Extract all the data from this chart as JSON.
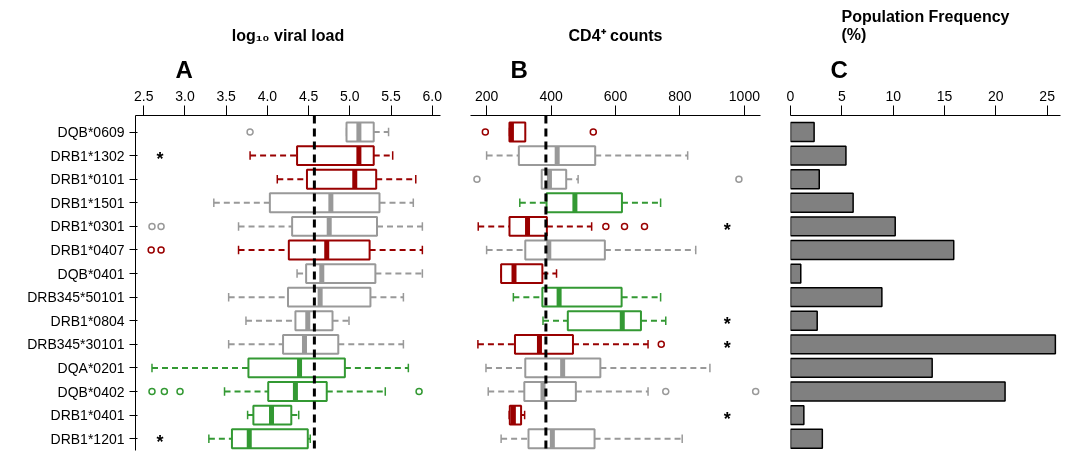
{
  "chart_data": [
    {
      "type": "box",
      "orientation": "horizontal",
      "title": "log₁₀ viral load",
      "subtitle": "A",
      "categories": [
        "DQB*0609",
        "DRB1*1302",
        "DRB1*0101",
        "DRB1*1501",
        "DRB1*0301",
        "DRB1*0407",
        "DQB*0401",
        "DRB345*50101",
        "DRB1*0804",
        "DRB345*30101",
        "DQA*0201",
        "DQB*0402",
        "DRB1*0401",
        "DRB1*1201"
      ],
      "colors": [
        "#999999",
        "#990000",
        "#990000",
        "#999999",
        "#999999",
        "#990000",
        "#999999",
        "#999999",
        "#999999",
        "#999999",
        "#339933",
        "#339933",
        "#339933",
        "#339933"
      ],
      "boxes": [
        {
          "low": 4.96,
          "q1": 4.96,
          "median": 5.11,
          "q3": 5.29,
          "high": 5.47,
          "outliers": [
            3.79
          ]
        },
        {
          "low": 3.79,
          "q1": 4.36,
          "median": 5.11,
          "q3": 5.29,
          "high": 5.52
        },
        {
          "low": 4.12,
          "q1": 4.48,
          "median": 5.06,
          "q3": 5.32,
          "high": 5.8
        },
        {
          "low": 3.35,
          "q1": 4.03,
          "median": 4.77,
          "q3": 5.36,
          "high": 5.77
        },
        {
          "low": 3.65,
          "q1": 4.3,
          "median": 4.75,
          "q3": 5.33,
          "high": 5.88,
          "outliers": [
            2.6,
            2.71
          ]
        },
        {
          "low": 3.65,
          "q1": 4.26,
          "median": 4.72,
          "q3": 5.24,
          "high": 5.88,
          "outliers": [
            2.59,
            2.71
          ]
        },
        {
          "low": 4.36,
          "q1": 4.47,
          "median": 4.66,
          "q3": 5.31,
          "high": 5.88
        },
        {
          "low": 3.53,
          "q1": 4.25,
          "median": 4.64,
          "q3": 5.25,
          "high": 5.65
        },
        {
          "low": 3.74,
          "q1": 4.34,
          "median": 4.49,
          "q3": 4.79,
          "high": 4.99
        },
        {
          "low": 3.53,
          "q1": 4.19,
          "median": 4.45,
          "q3": 4.86,
          "high": 5.65
        },
        {
          "low": 2.6,
          "q1": 3.77,
          "median": 4.39,
          "q3": 4.94,
          "high": 5.71
        },
        {
          "low": 3.48,
          "q1": 4.01,
          "median": 4.34,
          "q3": 4.72,
          "high": 5.43,
          "outliers": [
            2.6,
            2.75,
            2.94,
            5.84
          ]
        },
        {
          "low": 3.76,
          "q1": 3.83,
          "median": 4.05,
          "q3": 4.29,
          "high": 4.38
        },
        {
          "low": 3.29,
          "q1": 3.57,
          "median": 3.78,
          "q3": 4.49,
          "high": 4.52
        }
      ],
      "xlim": [
        2.4,
        6.1
      ],
      "xticks": [
        2.5,
        {
          "value": 3.0,
          "label": "3.0"
        },
        3.5,
        {
          "value": 4.0,
          "label": "4.0"
        },
        4.5,
        {
          "value": 5.0,
          "label": "5.0"
        },
        5.5,
        {
          "value": 6.0,
          "label": "6.0"
        }
      ],
      "ref_lines": [
        {
          "axis": "x",
          "value": 4.57,
          "color": "#000000",
          "line_style": "dashed"
        }
      ],
      "annotations": [
        "*",
        "*"
      ],
      "grid": false
    },
    {
      "type": "box",
      "orientation": "horizontal",
      "title": "CD4⁺ counts",
      "subtitle": "B",
      "categories": [
        null,
        null,
        null,
        null,
        null,
        null,
        null,
        null,
        null,
        null,
        null,
        null,
        null,
        null
      ],
      "colors": [
        "#990000",
        "#999999",
        "#999999",
        "#339933",
        "#990000",
        "#999999",
        "#990000",
        "#339933",
        "#339933",
        "#990000",
        "#999999",
        "#999999",
        "#990000",
        "#999999"
      ],
      "boxes": [
        {
          "low": 271,
          "q1": 271,
          "median": 277,
          "q3": 320,
          "high": 320,
          "outliers": [
            196,
            531
          ]
        },
        {
          "low": 200,
          "q1": 300,
          "median": 419,
          "q3": 537,
          "high": 824
        },
        {
          "low": 371,
          "q1": 371,
          "median": 395,
          "q3": 447,
          "high": 484,
          "outliers": [
            170,
            983
          ]
        },
        {
          "low": 303,
          "q1": 386,
          "median": 474,
          "q3": 620,
          "high": 740
        },
        {
          "low": 174,
          "q1": 271,
          "median": 327,
          "q3": 387,
          "high": 526,
          "outliers": [
            570,
            628,
            690
          ]
        },
        {
          "low": 200,
          "q1": 320,
          "median": 393,
          "q3": 567,
          "high": 849
        },
        {
          "low": 245,
          "q1": 245,
          "median": 285,
          "q3": 373,
          "high": 417
        },
        {
          "low": 283,
          "q1": 373,
          "median": 425,
          "q3": 619,
          "high": 740
        },
        {
          "low": 375,
          "q1": 452,
          "median": 621,
          "q3": 679,
          "high": 756
        },
        {
          "low": 173,
          "q1": 288,
          "median": 364,
          "q3": 468,
          "high": 701,
          "outliers": [
            742
          ]
        },
        {
          "low": 198,
          "q1": 320,
          "median": 436,
          "q3": 553,
          "high": 893
        },
        {
          "low": 205,
          "q1": 317,
          "median": 375,
          "q3": 477,
          "high": 701,
          "outliers": [
            756,
            1035
          ]
        },
        {
          "low": 270,
          "q1": 272,
          "median": 283,
          "q3": 307,
          "high": 318
        },
        {
          "low": 245,
          "q1": 330,
          "median": 404,
          "q3": 535,
          "high": 807
        }
      ],
      "xlim": [
        150,
        1050
      ],
      "xticks": [
        200,
        400,
        600,
        800,
        1000
      ],
      "ref_lines": [
        {
          "axis": "x",
          "value": 384,
          "color": "#000000",
          "line_style": "dashed"
        }
      ],
      "annotations": [
        "*",
        "*",
        "*",
        "*"
      ],
      "tick_labels": "x",
      "grid": false
    },
    {
      "type": "bar",
      "orientation": "horizontal",
      "title": "Population Frequency\n(%)",
      "subtitle": "C",
      "categories": [
        null,
        null,
        null,
        null,
        null,
        null,
        null,
        null,
        null,
        null,
        null,
        null,
        null,
        null
      ],
      "values": [
        2.3,
        5.4,
        2.8,
        6.1,
        10.2,
        15.9,
        1.0,
        8.9,
        2.6,
        25.8,
        13.8,
        20.9,
        1.3,
        3.1
      ],
      "color": "#808080",
      "xlim": [
        0,
        26.3
      ],
      "xticks": [
        0,
        5,
        10,
        15,
        20,
        25
      ],
      "tick_labels": "x",
      "grid": false
    }
  ]
}
